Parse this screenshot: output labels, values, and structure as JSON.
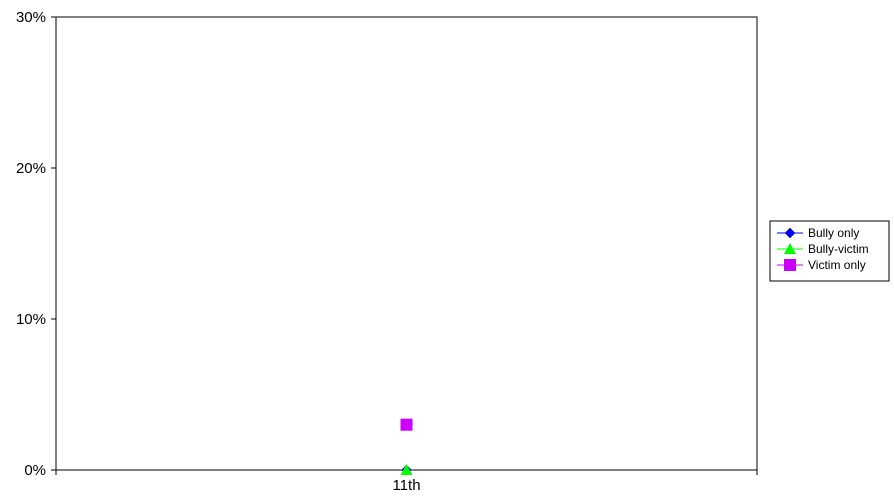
{
  "chart_data": {
    "type": "line",
    "categories": [
      "11th"
    ],
    "ylim": [
      0,
      30
    ],
    "yticks": [
      {
        "value": 0,
        "label": "0%"
      },
      {
        "value": 10,
        "label": "10%"
      },
      {
        "value": 20,
        "label": "20%"
      },
      {
        "value": 30,
        "label": "30%"
      }
    ],
    "grid": false,
    "legend_position": "right",
    "series": [
      {
        "name": "Bully only",
        "values": [
          0
        ],
        "color": "#0000ff",
        "marker": "diamond"
      },
      {
        "name": "Bully-victim",
        "values": [
          0
        ],
        "color": "#00ff00",
        "marker": "triangle"
      },
      {
        "name": "Victim only",
        "values": [
          3
        ],
        "color": "#cc00ff",
        "marker": "square"
      }
    ]
  }
}
